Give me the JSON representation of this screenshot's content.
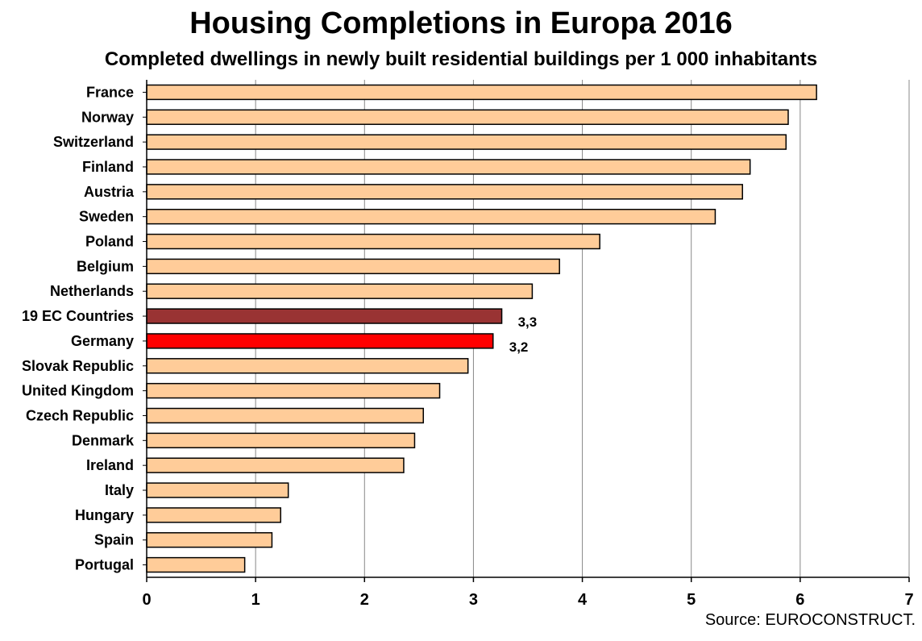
{
  "chart_data": {
    "type": "bar",
    "orientation": "horizontal",
    "title": "Housing Completions in Europa 2016",
    "subtitle": "Completed dwellings in newly built residential buildings per 1 000 inhabitants",
    "xlabel": "",
    "ylabel": "",
    "xlim": [
      0,
      7
    ],
    "xticks": [
      "0",
      "1",
      "2",
      "3",
      "4",
      "5",
      "6",
      "7"
    ],
    "grid": "vertical",
    "categories": [
      "France",
      "Norway",
      "Switzerland",
      "Finland",
      "Austria",
      "Sweden",
      "Poland",
      "Belgium",
      "Netherlands",
      "19 EC Countries",
      "Germany",
      "Slovak Republic",
      "United Kingdom",
      "Czech Republic",
      "Denmark",
      "Ireland",
      "Italy",
      "Hungary",
      "Spain",
      "Portugal"
    ],
    "values": [
      6.15,
      5.89,
      5.87,
      5.54,
      5.47,
      5.22,
      4.16,
      3.79,
      3.54,
      3.26,
      3.18,
      2.95,
      2.69,
      2.54,
      2.46,
      2.36,
      1.3,
      1.23,
      1.15,
      0.9
    ],
    "bar_colors": [
      "#FFCC99",
      "#FFCC99",
      "#FFCC99",
      "#FFCC99",
      "#FFCC99",
      "#FFCC99",
      "#FFCC99",
      "#FFCC99",
      "#FFCC99",
      "#993333",
      "#FF0000",
      "#FFCC99",
      "#FFCC99",
      "#FFCC99",
      "#FFCC99",
      "#FFCC99",
      "#FFCC99",
      "#FFCC99",
      "#FFCC99",
      "#FFCC99"
    ],
    "data_labels": [
      "",
      "",
      "",
      "",
      "",
      "",
      "",
      "",
      "",
      "3,3",
      "3,2",
      "",
      "",
      "",
      "",
      "",
      "",
      "",
      "",
      ""
    ],
    "source": "Source: EUROCONSTRUCT."
  }
}
